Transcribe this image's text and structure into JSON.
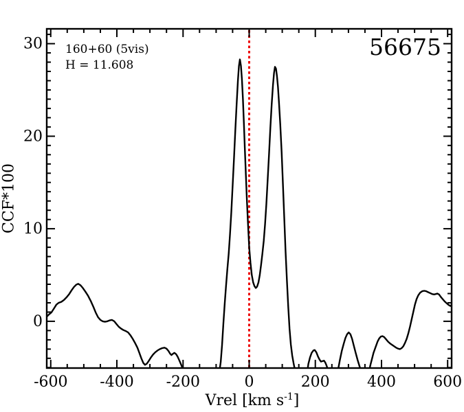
{
  "figure": {
    "star_id": "56675",
    "annotation_line1": "160+60 (5vis)",
    "annotation_line2": "H = 11.608"
  },
  "axis_labels": {
    "y": "CCF*100",
    "x_main": "Vrel [km s",
    "x_sup": "-1",
    "x_close": "]"
  },
  "colors": {
    "curve": "#000000",
    "frame": "#000000",
    "reference_line": "#ee0000",
    "background": "#ffffff"
  },
  "chart_data": {
    "type": "line",
    "title": "",
    "xlabel": "Vrel [km s^-1]",
    "ylabel": "CCF*100",
    "xlim": [
      -612,
      612
    ],
    "ylim": [
      -5.05,
      31.6
    ],
    "grid": false,
    "legend": "none",
    "x_major_ticks": [
      -600,
      -400,
      -200,
      0,
      200,
      400,
      600
    ],
    "x_tick_labels": [
      "-600",
      "-400",
      "-200",
      "0",
      "200",
      "400",
      "600"
    ],
    "x_minor_step": 50,
    "y_major_ticks": [
      0,
      10,
      20,
      30
    ],
    "y_tick_labels": [
      "0",
      "10",
      "20",
      "30"
    ],
    "y_minor_step": 1,
    "reference_line": {
      "x": 0,
      "style": "dotted",
      "color": "#ee0000"
    },
    "annotations": [
      "160+60 (5vis)",
      "H = 11.608",
      "56675"
    ],
    "series": [
      {
        "name": "ccf-curve",
        "color": "#000000",
        "points": [
          [
            -612,
            0.5
          ],
          [
            -605,
            0.75
          ],
          [
            -598,
            0.95
          ],
          [
            -590,
            1.4
          ],
          [
            -583,
            1.8
          ],
          [
            -576,
            2.0
          ],
          [
            -568,
            2.1
          ],
          [
            -560,
            2.3
          ],
          [
            -552,
            2.6
          ],
          [
            -544,
            2.95
          ],
          [
            -537,
            3.35
          ],
          [
            -530,
            3.7
          ],
          [
            -523,
            3.95
          ],
          [
            -517,
            4.05
          ],
          [
            -510,
            3.9
          ],
          [
            -503,
            3.6
          ],
          [
            -495,
            3.2
          ],
          [
            -487,
            2.75
          ],
          [
            -479,
            2.2
          ],
          [
            -471,
            1.55
          ],
          [
            -464,
            0.95
          ],
          [
            -457,
            0.45
          ],
          [
            -450,
            0.15
          ],
          [
            -443,
            0.0
          ],
          [
            -436,
            -0.05
          ],
          [
            -429,
            0.0
          ],
          [
            -422,
            0.1
          ],
          [
            -415,
            0.15
          ],
          [
            -408,
            0.0
          ],
          [
            -401,
            -0.3
          ],
          [
            -394,
            -0.6
          ],
          [
            -387,
            -0.8
          ],
          [
            -380,
            -0.95
          ],
          [
            -373,
            -1.05
          ],
          [
            -366,
            -1.2
          ],
          [
            -359,
            -1.5
          ],
          [
            -352,
            -1.9
          ],
          [
            -345,
            -2.35
          ],
          [
            -338,
            -2.85
          ],
          [
            -332,
            -3.4
          ],
          [
            -326,
            -4.0
          ],
          [
            -320,
            -4.5
          ],
          [
            -315,
            -4.7
          ],
          [
            -310,
            -4.6
          ],
          [
            -304,
            -4.3
          ],
          [
            -298,
            -3.95
          ],
          [
            -291,
            -3.6
          ],
          [
            -284,
            -3.35
          ],
          [
            -277,
            -3.15
          ],
          [
            -270,
            -3.0
          ],
          [
            -263,
            -2.9
          ],
          [
            -256,
            -2.85
          ],
          [
            -250,
            -2.95
          ],
          [
            -244,
            -3.2
          ],
          [
            -239,
            -3.5
          ],
          [
            -235,
            -3.65
          ],
          [
            -230,
            -3.5
          ],
          [
            -226,
            -3.4
          ],
          [
            -221,
            -3.55
          ],
          [
            -216,
            -3.85
          ],
          [
            -211,
            -4.25
          ],
          [
            -205,
            -4.75
          ],
          [
            -199,
            -5.3
          ],
          [
            -193,
            -5.9
          ],
          [
            -186,
            -6.6
          ],
          [
            -175,
            -7.5
          ],
          [
            -160,
            -8.0
          ],
          [
            -140,
            -8.0
          ],
          [
            -120,
            -7.5
          ],
          [
            -105,
            -7.0
          ],
          [
            -96,
            -6.3
          ],
          [
            -90,
            -5.4
          ],
          [
            -86,
            -4.4
          ],
          [
            -82,
            -2.6
          ],
          [
            -78,
            -0.2
          ],
          [
            -74,
            1.9
          ],
          [
            -70,
            3.8
          ],
          [
            -66,
            5.6
          ],
          [
            -62,
            7.3
          ],
          [
            -58,
            9.4
          ],
          [
            -54,
            11.8
          ],
          [
            -50,
            14.6
          ],
          [
            -46,
            17.6
          ],
          [
            -42,
            20.6
          ],
          [
            -38,
            23.4
          ],
          [
            -34,
            26.0
          ],
          [
            -31,
            27.6
          ],
          [
            -28,
            28.3
          ],
          [
            -25,
            27.6
          ],
          [
            -22,
            26.2
          ],
          [
            -19,
            24.0
          ],
          [
            -16,
            21.4
          ],
          [
            -13,
            18.6
          ],
          [
            -10,
            15.8
          ],
          [
            -7,
            13.2
          ],
          [
            -4,
            10.8
          ],
          [
            0,
            8.0
          ],
          [
            4,
            6.3
          ],
          [
            8,
            5.0
          ],
          [
            12,
            4.2
          ],
          [
            16,
            3.8
          ],
          [
            20,
            3.6
          ],
          [
            24,
            3.75
          ],
          [
            28,
            4.2
          ],
          [
            32,
            5.0
          ],
          [
            36,
            6.1
          ],
          [
            40,
            7.3
          ],
          [
            44,
            8.7
          ],
          [
            48,
            10.5
          ],
          [
            52,
            12.7
          ],
          [
            56,
            15.3
          ],
          [
            60,
            18.1
          ],
          [
            64,
            20.9
          ],
          [
            68,
            23.4
          ],
          [
            72,
            25.5
          ],
          [
            75,
            26.8
          ],
          [
            78,
            27.5
          ],
          [
            81,
            27.3
          ],
          [
            84,
            26.5
          ],
          [
            87,
            25.3
          ],
          [
            90,
            23.7
          ],
          [
            94,
            21.3
          ],
          [
            98,
            18.3
          ],
          [
            102,
            14.8
          ],
          [
            106,
            11.2
          ],
          [
            110,
            7.6
          ],
          [
            114,
            4.4
          ],
          [
            118,
            1.6
          ],
          [
            122,
            -0.8
          ],
          [
            126,
            -2.5
          ],
          [
            130,
            -3.7
          ],
          [
            134,
            -4.5
          ],
          [
            138,
            -5.2
          ],
          [
            143,
            -6.0
          ],
          [
            148,
            -6.8
          ],
          [
            156,
            -7.6
          ],
          [
            164,
            -7.6
          ],
          [
            170,
            -6.8
          ],
          [
            175,
            -5.6
          ],
          [
            179,
            -4.6
          ],
          [
            184,
            -3.9
          ],
          [
            189,
            -3.4
          ],
          [
            194,
            -3.15
          ],
          [
            198,
            -3.1
          ],
          [
            203,
            -3.35
          ],
          [
            208,
            -3.8
          ],
          [
            213,
            -4.15
          ],
          [
            217,
            -4.35
          ],
          [
            222,
            -4.3
          ],
          [
            226,
            -4.25
          ],
          [
            230,
            -4.45
          ],
          [
            234,
            -4.8
          ],
          [
            239,
            -5.3
          ],
          [
            244,
            -5.9
          ],
          [
            251,
            -6.6
          ],
          [
            258,
            -6.7
          ],
          [
            264,
            -6.1
          ],
          [
            269,
            -5.2
          ],
          [
            274,
            -4.2
          ],
          [
            280,
            -3.2
          ],
          [
            286,
            -2.4
          ],
          [
            291,
            -1.8
          ],
          [
            296,
            -1.4
          ],
          [
            301,
            -1.2
          ],
          [
            306,
            -1.4
          ],
          [
            311,
            -1.9
          ],
          [
            316,
            -2.6
          ],
          [
            322,
            -3.4
          ],
          [
            328,
            -4.2
          ],
          [
            334,
            -4.9
          ],
          [
            340,
            -5.6
          ],
          [
            346,
            -6.3
          ],
          [
            352,
            -6.7
          ],
          [
            357,
            -6.4
          ],
          [
            362,
            -5.6
          ],
          [
            366,
            -4.8
          ],
          [
            371,
            -4.1
          ],
          [
            376,
            -3.4
          ],
          [
            382,
            -2.8
          ],
          [
            388,
            -2.2
          ],
          [
            393,
            -1.85
          ],
          [
            398,
            -1.65
          ],
          [
            403,
            -1.6
          ],
          [
            408,
            -1.7
          ],
          [
            414,
            -1.95
          ],
          [
            420,
            -2.2
          ],
          [
            426,
            -2.4
          ],
          [
            432,
            -2.55
          ],
          [
            438,
            -2.7
          ],
          [
            444,
            -2.85
          ],
          [
            450,
            -2.95
          ],
          [
            456,
            -3.0
          ],
          [
            461,
            -2.9
          ],
          [
            466,
            -2.7
          ],
          [
            471,
            -2.35
          ],
          [
            476,
            -1.9
          ],
          [
            481,
            -1.3
          ],
          [
            486,
            -0.6
          ],
          [
            491,
            0.2
          ],
          [
            496,
            1.0
          ],
          [
            501,
            1.8
          ],
          [
            506,
            2.4
          ],
          [
            511,
            2.8
          ],
          [
            517,
            3.1
          ],
          [
            523,
            3.25
          ],
          [
            529,
            3.3
          ],
          [
            535,
            3.25
          ],
          [
            541,
            3.15
          ],
          [
            547,
            3.05
          ],
          [
            553,
            2.95
          ],
          [
            559,
            2.9
          ],
          [
            564,
            2.95
          ],
          [
            569,
            3.0
          ],
          [
            574,
            2.9
          ],
          [
            579,
            2.65
          ],
          [
            585,
            2.4
          ],
          [
            591,
            2.15
          ],
          [
            597,
            1.95
          ],
          [
            602,
            1.8
          ],
          [
            606,
            1.7
          ],
          [
            609,
            1.65
          ],
          [
            612,
            1.8
          ]
        ]
      }
    ]
  }
}
